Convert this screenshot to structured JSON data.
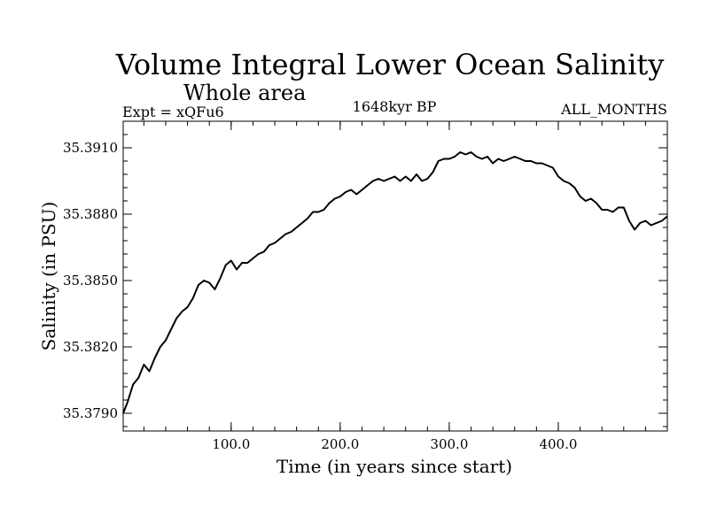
{
  "chart_data": {
    "type": "line",
    "title": "Volume Integral Lower Ocean Salinity",
    "subtitle": "Whole area",
    "left_label": "Expt = xQFu6",
    "center_label": "1648kyr BP",
    "right_label": "ALL_MONTHS",
    "xlabel": "Time (in years since start)",
    "ylabel": "Salinity (in PSU)",
    "xlim": [
      1,
      500
    ],
    "ylim": [
      35.3782,
      35.3922
    ],
    "x_major_ticks": [
      100,
      200,
      300,
      400
    ],
    "x_tick_labels": [
      "100.0",
      "200.0",
      "300.0",
      "400.0"
    ],
    "x_minor_step": 20,
    "y_major_ticks": [
      35.379,
      35.382,
      35.385,
      35.388,
      35.391
    ],
    "y_tick_labels": [
      "35.3790",
      "35.3820",
      "35.3850",
      "35.3880",
      "35.3910"
    ],
    "y_minor_step": 0.0006,
    "grid": false,
    "series": [
      {
        "name": "salinity",
        "color": "#000000",
        "x": [
          1,
          5,
          10,
          15,
          20,
          25,
          30,
          35,
          40,
          45,
          50,
          55,
          60,
          65,
          70,
          75,
          80,
          85,
          90,
          95,
          100,
          105,
          110,
          115,
          120,
          125,
          130,
          135,
          140,
          145,
          150,
          155,
          160,
          165,
          170,
          175,
          180,
          185,
          190,
          195,
          200,
          205,
          210,
          215,
          220,
          225,
          230,
          235,
          240,
          245,
          250,
          255,
          260,
          265,
          270,
          275,
          280,
          285,
          290,
          295,
          300,
          305,
          310,
          315,
          320,
          325,
          330,
          335,
          340,
          345,
          350,
          355,
          360,
          365,
          370,
          375,
          380,
          385,
          390,
          395,
          400,
          405,
          410,
          415,
          420,
          425,
          430,
          435,
          440,
          445,
          450,
          455,
          460,
          465,
          470,
          475,
          480,
          485,
          490,
          495,
          500
        ],
        "values": [
          35.379,
          35.3795,
          35.3803,
          35.3806,
          35.3812,
          35.3809,
          35.3815,
          35.382,
          35.3823,
          35.3828,
          35.3833,
          35.3836,
          35.3838,
          35.3842,
          35.3848,
          35.385,
          35.3849,
          35.3846,
          35.3851,
          35.3857,
          35.3859,
          35.3855,
          35.3858,
          35.3858,
          35.386,
          35.3862,
          35.3863,
          35.3866,
          35.3867,
          35.3869,
          35.3871,
          35.3872,
          35.3874,
          35.3876,
          35.3878,
          35.3881,
          35.3881,
          35.3882,
          35.3885,
          35.3887,
          35.3888,
          35.389,
          35.3891,
          35.3889,
          35.3891,
          35.3893,
          35.3895,
          35.3896,
          35.3895,
          35.3896,
          35.3897,
          35.3895,
          35.3897,
          35.3895,
          35.3898,
          35.3895,
          35.3896,
          35.3899,
          35.3904,
          35.3905,
          35.3905,
          35.3906,
          35.3908,
          35.3907,
          35.3908,
          35.3906,
          35.3905,
          35.3906,
          35.3903,
          35.3905,
          35.3904,
          35.3905,
          35.3906,
          35.3905,
          35.3904,
          35.3904,
          35.3903,
          35.3903,
          35.3902,
          35.3901,
          35.3897,
          35.3895,
          35.3894,
          35.3892,
          35.3888,
          35.3886,
          35.3887,
          35.3885,
          35.3882,
          35.3882,
          35.3881,
          35.3883,
          35.3883,
          35.3877,
          35.3873,
          35.3876,
          35.3877,
          35.3875,
          35.3876,
          35.3877,
          35.3879
        ]
      }
    ]
  }
}
